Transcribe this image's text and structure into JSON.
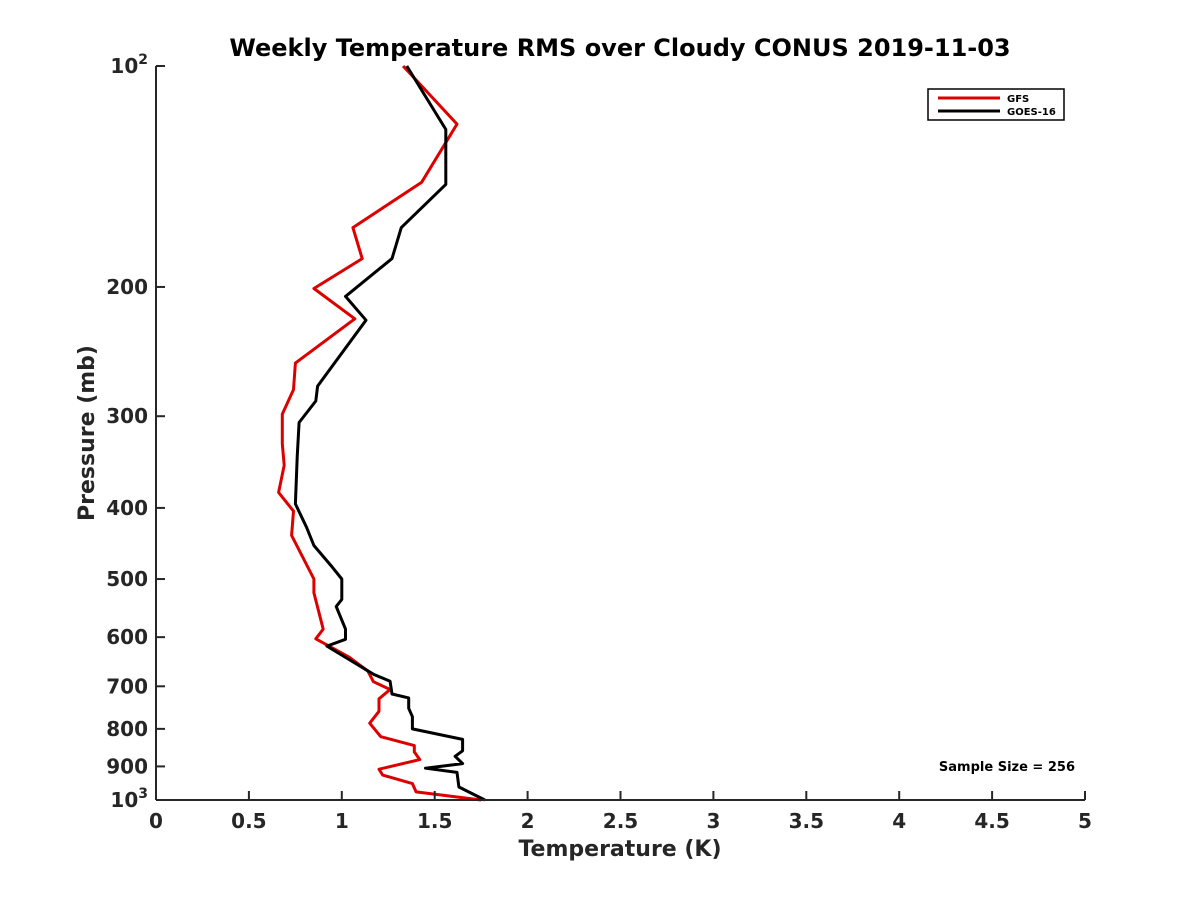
{
  "chart_data": {
    "type": "line",
    "title": "Weekly Temperature RMS over Cloudy CONUS 2019-11-03",
    "xlabel": "Temperature (K)",
    "ylabel": "Pressure (mb)",
    "xlim": [
      0,
      5
    ],
    "ylim": [
      100,
      1000
    ],
    "y_scale": "log",
    "y_reversed": true,
    "grid": false,
    "legend_position": "top-right",
    "x_ticks": [
      0,
      0.5,
      1,
      1.5,
      2,
      2.5,
      3,
      3.5,
      4,
      4.5,
      5
    ],
    "x_tick_labels": [
      "0",
      "0.5",
      "1",
      "1.5",
      "2",
      "2.5",
      "3",
      "3.5",
      "4",
      "4.5",
      "5"
    ],
    "y_ticks": [
      100,
      200,
      300,
      400,
      500,
      600,
      700,
      800,
      900,
      1000
    ],
    "y_tick_labels": [
      {
        "base": "10",
        "exp": "2"
      },
      {
        "base": "200"
      },
      {
        "base": "300"
      },
      {
        "base": "400"
      },
      {
        "base": "500"
      },
      {
        "base": "600"
      },
      {
        "base": "700"
      },
      {
        "base": "800"
      },
      {
        "base": "900"
      },
      {
        "base": "10",
        "exp": "3"
      }
    ],
    "annotation": "Sample Size = 256",
    "series": [
      {
        "name": "GFS",
        "color": "#dd0000",
        "points": [
          [
            1.33,
            100
          ],
          [
            1.62,
            120
          ],
          [
            1.43,
            144
          ],
          [
            1.06,
            166
          ],
          [
            1.11,
            183
          ],
          [
            0.85,
            201
          ],
          [
            1.07,
            221
          ],
          [
            0.75,
            254
          ],
          [
            0.74,
            276
          ],
          [
            0.68,
            298
          ],
          [
            0.68,
            327
          ],
          [
            0.69,
            350
          ],
          [
            0.66,
            381
          ],
          [
            0.74,
            404
          ],
          [
            0.73,
            436
          ],
          [
            0.85,
            500
          ],
          [
            0.85,
            522
          ],
          [
            0.9,
            585
          ],
          [
            0.86,
            603
          ],
          [
            1.04,
            639
          ],
          [
            1.14,
            667
          ],
          [
            1.17,
            690
          ],
          [
            1.26,
            707
          ],
          [
            1.2,
            728
          ],
          [
            1.2,
            757
          ],
          [
            1.15,
            786
          ],
          [
            1.21,
            820
          ],
          [
            1.39,
            843
          ],
          [
            1.39,
            860
          ],
          [
            1.42,
            881
          ],
          [
            1.2,
            908
          ],
          [
            1.22,
            925
          ],
          [
            1.38,
            950
          ],
          [
            1.4,
            975
          ],
          [
            1.75,
            1000
          ]
        ]
      },
      {
        "name": "GOES-16",
        "color": "#000000",
        "points": [
          [
            1.35,
            100
          ],
          [
            1.56,
            122
          ],
          [
            1.56,
            145
          ],
          [
            1.32,
            166
          ],
          [
            1.27,
            183
          ],
          [
            1.02,
            206
          ],
          [
            1.13,
            222
          ],
          [
            0.87,
            273
          ],
          [
            0.86,
            286
          ],
          [
            0.77,
            306
          ],
          [
            0.76,
            341
          ],
          [
            0.75,
            395
          ],
          [
            0.81,
            425
          ],
          [
            0.85,
            450
          ],
          [
            0.95,
            482
          ],
          [
            1.0,
            500
          ],
          [
            1.0,
            533
          ],
          [
            0.97,
            545
          ],
          [
            1.02,
            585
          ],
          [
            1.02,
            604
          ],
          [
            0.92,
            617
          ],
          [
            1.17,
            674
          ],
          [
            1.26,
            689
          ],
          [
            1.27,
            717
          ],
          [
            1.36,
            726
          ],
          [
            1.36,
            750
          ],
          [
            1.38,
            770
          ],
          [
            1.38,
            800
          ],
          [
            1.65,
            827
          ],
          [
            1.65,
            857
          ],
          [
            1.61,
            872
          ],
          [
            1.65,
            892
          ],
          [
            1.45,
            905
          ],
          [
            1.62,
            917
          ],
          [
            1.63,
            960
          ],
          [
            1.77,
            1000
          ]
        ]
      }
    ]
  }
}
